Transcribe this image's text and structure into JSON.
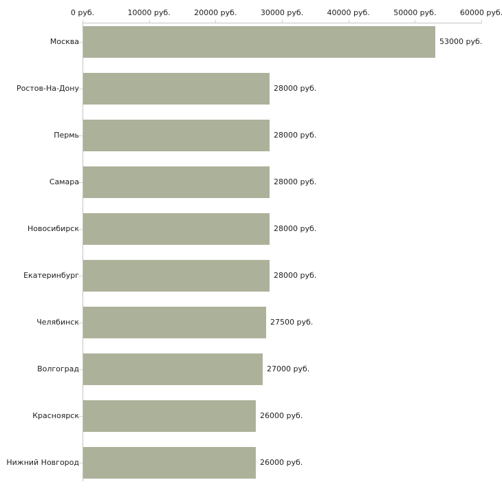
{
  "chart_data": {
    "type": "bar",
    "orientation": "horizontal",
    "title": "",
    "xlabel": "",
    "ylabel": "",
    "categories": [
      "Москва",
      "Ростов-На-Дону",
      "Пермь",
      "Самара",
      "Новосибирск",
      "Екатеринбург",
      "Челябинск",
      "Волгоград",
      "Красноярск",
      "Нижний Новгород"
    ],
    "values": [
      53000,
      28000,
      28000,
      28000,
      28000,
      28000,
      27500,
      27000,
      26000,
      26000
    ],
    "value_labels": [
      "53000 руб.",
      "28000 руб.",
      "28000 руб.",
      "28000 руб.",
      "28000 руб.",
      "28000 руб.",
      "27500 руб.",
      "27000 руб.",
      "26000 руб.",
      "26000 руб."
    ],
    "x_ticks": [
      {
        "value": 0,
        "label": "0 руб."
      },
      {
        "value": 10000,
        "label": "10000 руб."
      },
      {
        "value": 20000,
        "label": "20000 руб."
      },
      {
        "value": 30000,
        "label": "30000 руб."
      },
      {
        "value": 40000,
        "label": "40000 руб."
      },
      {
        "value": 50000,
        "label": "50000 руб."
      },
      {
        "value": 60000,
        "label": "60000 руб."
      }
    ],
    "xlim": [
      0,
      60000
    ],
    "grid": false,
    "legend": false,
    "axis_position": "top",
    "colors": {
      "bar": "#acb199",
      "axis_line": "#c3c3c3",
      "tick": "#d6d6b2",
      "text": "#1c1c1c",
      "background": "#ffffff"
    }
  }
}
